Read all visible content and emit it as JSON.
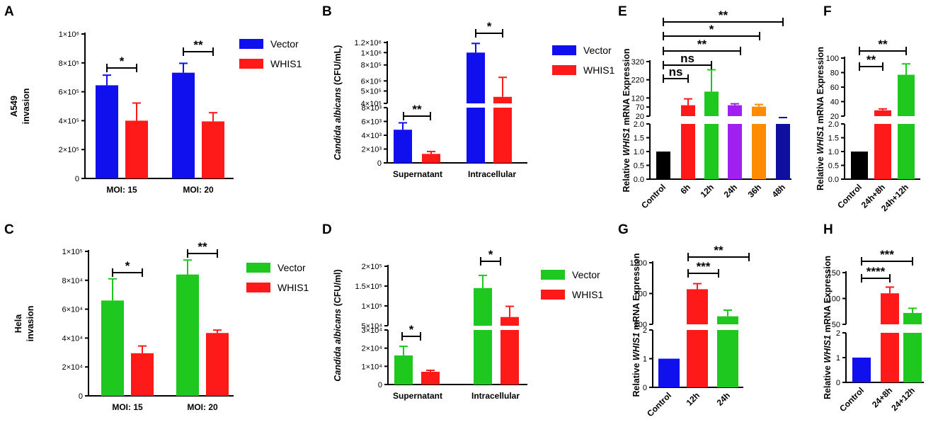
{
  "chart_data": [
    {
      "panel": "A",
      "type": "bar",
      "ylabel": "A549\ninvasion",
      "categories": [
        "MOI: 15",
        "MOI: 20"
      ],
      "series": [
        {
          "name": "Vector",
          "color": "#1010ee",
          "values": [
            645000,
            732000
          ],
          "err": [
            70000,
            65000
          ]
        },
        {
          "name": "WHIS1",
          "color": "#ff1a1a",
          "values": [
            400000,
            395000
          ],
          "err": [
            122000,
            60000
          ]
        }
      ],
      "ylim": [
        0,
        1000000
      ],
      "yticks": [
        "0",
        "2×10⁵",
        "4×10⁵",
        "6×10⁵",
        "8×10⁵",
        "1×10⁶"
      ],
      "significance": [
        "*",
        "**"
      ]
    },
    {
      "panel": "B",
      "type": "bar",
      "ylabel": "Candida albicans (CFU/mL)",
      "categories": [
        "Supernatant",
        "Intracellular"
      ],
      "series": [
        {
          "name": "Vector",
          "color": "#1010ee",
          "values": [
            4800,
            1000000
          ]
        },
        {
          "name": "WHIS1",
          "color": "#ff1a1a",
          "values": [
            1300,
            450000
          ]
        }
      ],
      "yticks_lower": [
        "0",
        "2×10³",
        "4×10³",
        "6×10³",
        "8×10³"
      ],
      "yticks_upper": [
        "4×10⁵",
        "5×10⁵",
        "6×10⁵",
        "8×10⁵",
        "1×10⁶",
        "1.2×10⁶"
      ],
      "significance": [
        "**",
        "*"
      ]
    },
    {
      "panel": "C",
      "type": "bar",
      "ylabel": "Hela\ninvasion",
      "categories": [
        "MOI: 15",
        "MOI: 20"
      ],
      "series": [
        {
          "name": "Vector",
          "color": "#1ec81e",
          "values": [
            66000,
            84000
          ],
          "err": [
            15000,
            10000
          ]
        },
        {
          "name": "WHIS1",
          "color": "#ff1a1a",
          "values": [
            29500,
            43500
          ],
          "err": [
            5000,
            2000
          ]
        }
      ],
      "ylim": [
        0,
        100000
      ],
      "yticks": [
        "0",
        "2×10⁴",
        "4×10⁴",
        "6×10⁴",
        "8×10⁴",
        "1×10⁵"
      ],
      "significance": [
        "*",
        "**"
      ]
    },
    {
      "panel": "D",
      "type": "bar",
      "ylabel": "Candida albicans (CFU/ml)",
      "categories": [
        "Supernatant",
        "Intracellular"
      ],
      "series": [
        {
          "name": "Vector",
          "color": "#1ec81e",
          "values": [
            16000,
            145000
          ]
        },
        {
          "name": "WHIS1",
          "color": "#ff1a1a",
          "values": [
            7000,
            72000
          ]
        }
      ],
      "yticks_lower": [
        "0",
        "1×10⁴",
        "2×10⁴",
        "3×10⁴"
      ],
      "yticks_upper": [
        "5×10⁴",
        "1×10⁵",
        "1.5×10⁵",
        "2×10⁵"
      ],
      "significance": [
        "*",
        "*"
      ]
    },
    {
      "panel": "E",
      "type": "bar",
      "ylabel": "Relative WHIS1 mRNA Expression",
      "categories": [
        "Control",
        "6h",
        "12h",
        "24h",
        "36h",
        "48h"
      ],
      "values": [
        1,
        80,
        155,
        80,
        72,
        10
      ],
      "colors": [
        "#000000",
        "#ff1a1a",
        "#1ec81e",
        "#a020f0",
        "#ff8c00",
        "#10109e"
      ],
      "yticks_lower": [
        "0.0",
        "0.5",
        "1.0",
        "1.5",
        "2.0"
      ],
      "yticks_upper": [
        "20",
        "70",
        "120",
        "220",
        "320"
      ],
      "significance": [
        "ns",
        "ns",
        "**",
        "*",
        "**"
      ]
    },
    {
      "panel": "F",
      "type": "bar",
      "ylabel": "Relative WHIS1 mRNA Expression",
      "categories": [
        "Control",
        "24h+8h",
        "24h+12h"
      ],
      "values": [
        1,
        28,
        77
      ],
      "colors": [
        "#000000",
        "#ff1a1a",
        "#1ec81e"
      ],
      "yticks_lower": [
        "0.0",
        "0.5",
        "1.0",
        "1.5",
        "2.0"
      ],
      "yticks_upper": [
        "20",
        "40",
        "60",
        "80",
        "100"
      ],
      "significance": [
        "**",
        "**"
      ]
    },
    {
      "panel": "G",
      "type": "bar",
      "ylabel": "Relative WHIS1 mRNA Expression",
      "categories": [
        "Control",
        "12h",
        "24h"
      ],
      "values": [
        1,
        770,
        330
      ],
      "colors": [
        "#1010ee",
        "#ff1a1a",
        "#1ec81e"
      ],
      "yticks_lower": [
        "0",
        "1",
        "2"
      ],
      "yticks_upper": [
        "200",
        "700",
        "1200"
      ],
      "significance": [
        "***",
        "**"
      ]
    },
    {
      "panel": "H",
      "type": "bar",
      "ylabel": "Relative WHIS1 mRNA Expression",
      "categories": [
        "Control",
        "24+8h",
        "24+12h"
      ],
      "values": [
        1,
        110,
        72
      ],
      "colors": [
        "#1010ee",
        "#ff1a1a",
        "#1ec81e"
      ],
      "yticks_lower": [
        "0",
        "1",
        "2"
      ],
      "yticks_upper": [
        "50",
        "100",
        "150"
      ],
      "significance": [
        "****",
        "***"
      ]
    }
  ]
}
